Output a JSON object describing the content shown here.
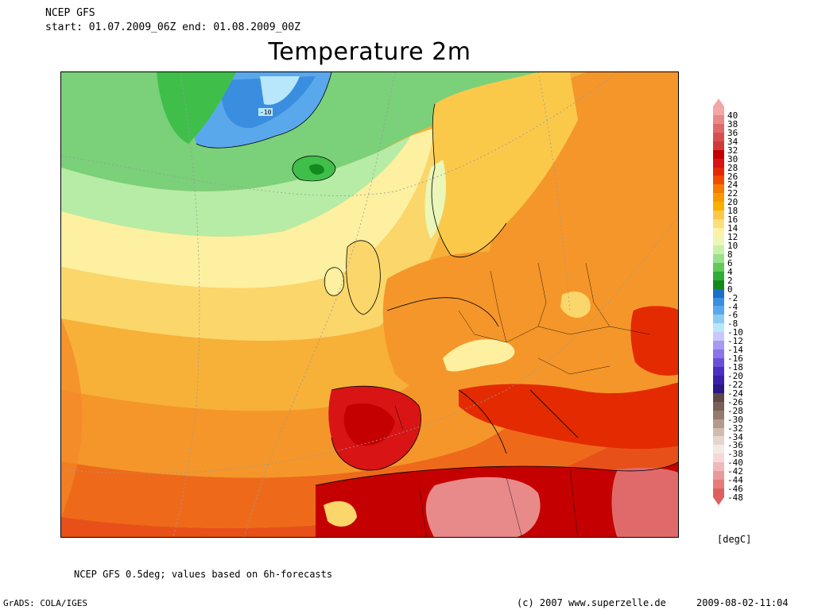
{
  "header": {
    "model": "NCEP GFS",
    "range": "start: 01.07.2009_06Z   end: 01.08.2009_00Z",
    "title": "Temperature 2m"
  },
  "map": {
    "region": "Europe / North Atlantic / North Africa",
    "contour_label": "-10"
  },
  "colorbar": {
    "unit": "[degC]",
    "levels": [
      "40",
      "38",
      "36",
      "34",
      "32",
      "30",
      "28",
      "26",
      "24",
      "22",
      "20",
      "18",
      "16",
      "14",
      "12",
      "10",
      "8",
      "6",
      "4",
      "2",
      "0",
      "-2",
      "-4",
      "-6",
      "-8",
      "-10",
      "-12",
      "-14",
      "-16",
      "-18",
      "-20",
      "-22",
      "-24",
      "-26",
      "-28",
      "-30",
      "-32",
      "-34",
      "-36",
      "-38",
      "-40",
      "-42",
      "-44",
      "-46",
      "-48"
    ],
    "colors": [
      "#f2a6a6",
      "#e88a8a",
      "#e06a6a",
      "#d94e4e",
      "#cf3a3a",
      "#c40000",
      "#d81414",
      "#e42a00",
      "#f04a00",
      "#f47a00",
      "#f79a00",
      "#f9b000",
      "#fbc94a",
      "#fcdf7a",
      "#fdf2a6",
      "#eaf7b8",
      "#c8f0a8",
      "#9be08a",
      "#63c95a",
      "#2fad3a",
      "#128a1e",
      "#1c6ec8",
      "#3a8ee0",
      "#5aa8ec",
      "#8ccaf4",
      "#b8e6fa",
      "#c8c8ff",
      "#a89af2",
      "#8a74e6",
      "#6a50d8",
      "#4a30c4",
      "#3a20a8",
      "#2c1688",
      "#604848",
      "#7a6058",
      "#967a6c",
      "#b49a8c",
      "#cfbcae",
      "#e4d6cc",
      "#f2eae4",
      "#f6d8d8",
      "#f0b8b8",
      "#ea9a9a",
      "#e47c7c",
      "#de6060"
    ]
  },
  "footer": {
    "note": "NCEP GFS 0.5deg; values based on 6h-forecasts",
    "grads": "GrADS: COLA/IGES",
    "copyright": "(c) 2007 www.superzelle.de",
    "timestamp": "2009-08-02-11:04"
  }
}
